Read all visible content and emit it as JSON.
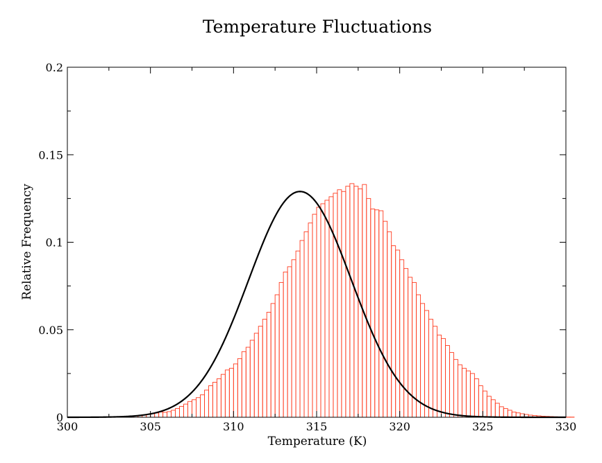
{
  "chart_data": {
    "type": "bar",
    "title": "Temperature Fluctuations",
    "xlabel": "Temperature (K)",
    "ylabel": "Relative Frequency",
    "xlim": [
      300,
      330
    ],
    "ylim": [
      0,
      0.2
    ],
    "x_ticks": [
      300,
      305,
      310,
      315,
      320,
      325,
      330
    ],
    "x_tick_labels": [
      "300",
      "305",
      "310",
      "315",
      "320",
      "325",
      "330"
    ],
    "y_ticks": [
      0,
      0.05,
      0.1,
      0.15,
      0.2
    ],
    "y_tick_labels": [
      "0",
      "0.05",
      "0.1",
      "0.15",
      "0.2"
    ],
    "grid": false,
    "series": [
      {
        "kind": "histogram",
        "color": "#ff3b1f",
        "bin_width": 0.25,
        "bin_start": 302.0,
        "values": [
          0.0001,
          0.0001,
          0.0002,
          0.0002,
          0.0003,
          0.0004,
          0.0005,
          0.0006,
          0.0008,
          0.001,
          0.0013,
          0.0016,
          0.002,
          0.0024,
          0.003,
          0.0028,
          0.0032,
          0.004,
          0.005,
          0.0062,
          0.0075,
          0.009,
          0.01,
          0.0112,
          0.0128,
          0.0155,
          0.018,
          0.02,
          0.022,
          0.0245,
          0.027,
          0.028,
          0.0305,
          0.0335,
          0.0375,
          0.04,
          0.044,
          0.048,
          0.052,
          0.056,
          0.06,
          0.065,
          0.07,
          0.077,
          0.083,
          0.086,
          0.09,
          0.095,
          0.101,
          0.106,
          0.111,
          0.116,
          0.12,
          0.122,
          0.124,
          0.126,
          0.128,
          0.13,
          0.129,
          0.132,
          0.1335,
          0.132,
          0.1305,
          0.133,
          0.125,
          0.119,
          0.1185,
          0.118,
          0.112,
          0.106,
          0.098,
          0.0955,
          0.09,
          0.085,
          0.08,
          0.077,
          0.07,
          0.065,
          0.061,
          0.056,
          0.052,
          0.047,
          0.045,
          0.041,
          0.037,
          0.033,
          0.03,
          0.028,
          0.0265,
          0.025,
          0.022,
          0.018,
          0.015,
          0.012,
          0.01,
          0.008,
          0.006,
          0.005,
          0.004,
          0.003,
          0.0025,
          0.002,
          0.0016,
          0.0012,
          0.001,
          0.0008,
          0.0006,
          0.0005,
          0.0004,
          0.0003,
          0.0002,
          0.0002,
          0.0001,
          0.0001
        ]
      },
      {
        "kind": "gaussian_fit",
        "color": "#000000",
        "mean": 314.0,
        "peak": 0.129,
        "sigma": 3.1
      }
    ]
  }
}
